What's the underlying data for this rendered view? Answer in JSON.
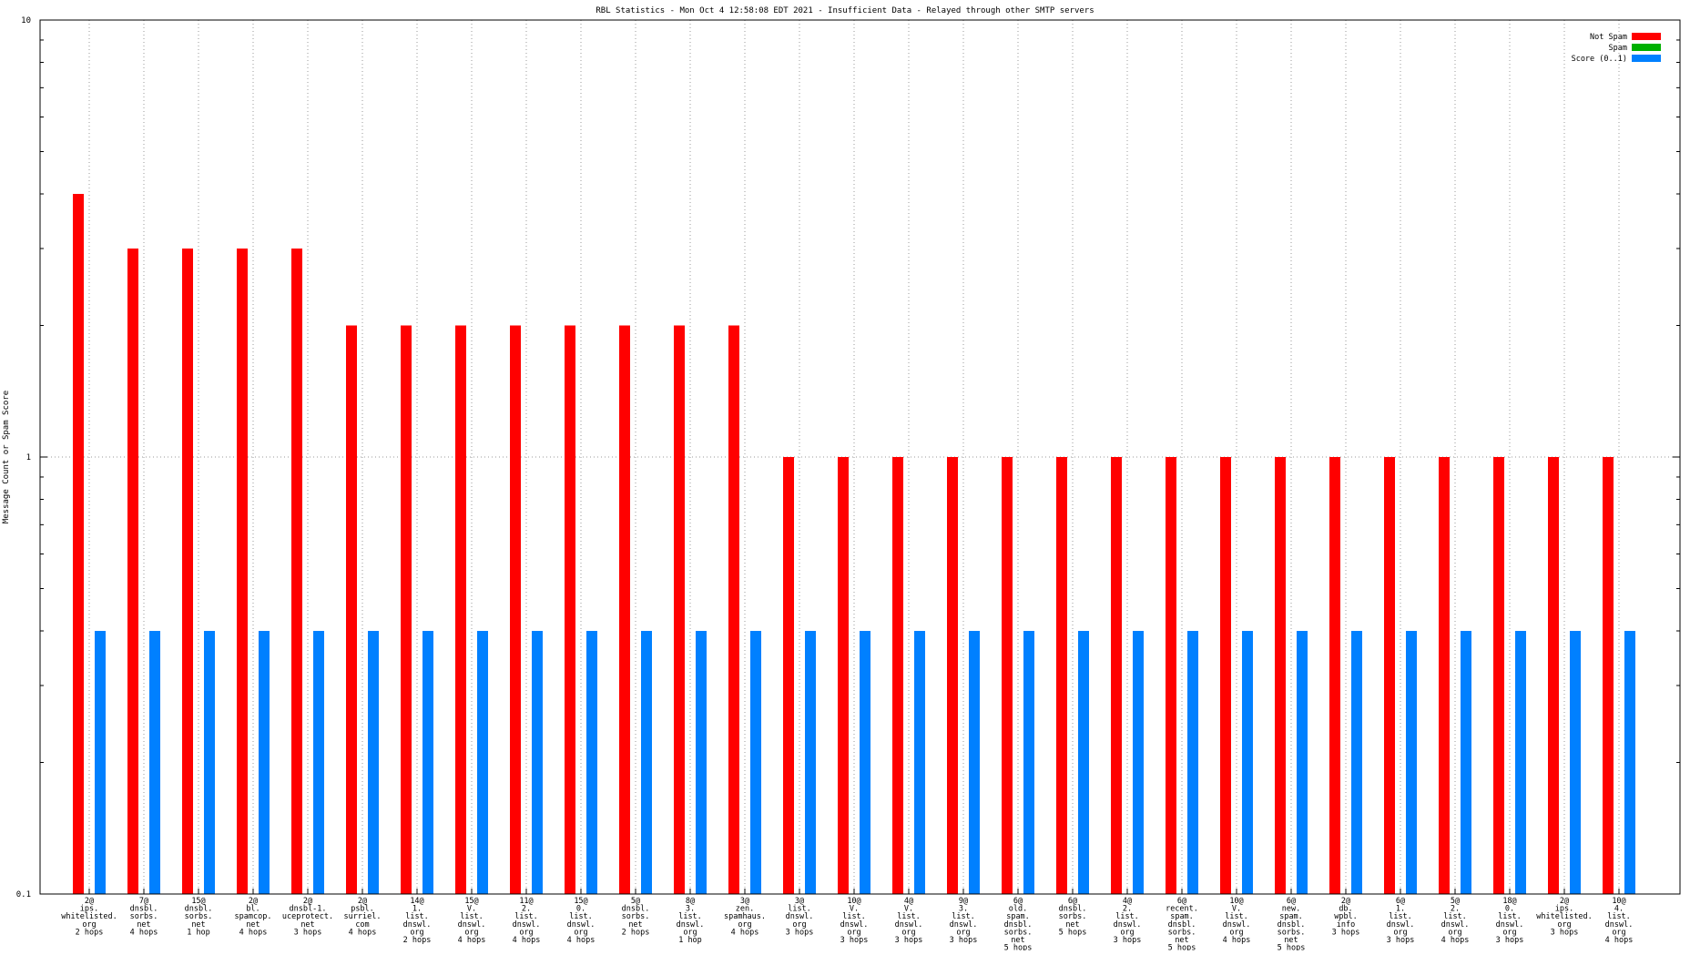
{
  "chart_data": {
    "type": "bar",
    "title": "RBL Statistics - Mon Oct  4 12:58:08 EDT 2021 - Insufficient Data - Relayed through other SMTP servers",
    "xlabel": "",
    "ylabel": "Message Count or Spam Score",
    "yscale": "log",
    "ylim": [
      0.1,
      10
    ],
    "yticks": [
      "0.1",
      "1",
      "10"
    ],
    "grid": true,
    "legend_position": "top-right",
    "categories": [
      [
        "2@",
        "ips.",
        "whitelisted.",
        "org",
        "2 hops"
      ],
      [
        "7@",
        "dnsbl.",
        "sorbs.",
        "net",
        "4 hops"
      ],
      [
        "15@",
        "dnsbl.",
        "sorbs.",
        "net",
        "1 hop"
      ],
      [
        "2@",
        "bl.",
        "spamcop.",
        "net",
        "4 hops"
      ],
      [
        "2@",
        "dnsbl-1.",
        "uceprotect.",
        "net",
        "3 hops"
      ],
      [
        "2@",
        "psbl.",
        "surriel.",
        "com",
        "4 hops"
      ],
      [
        "14@",
        "1.",
        "list.",
        "dnswl.",
        "org",
        "2 hops"
      ],
      [
        "15@",
        "V.",
        "list.",
        "dnswl.",
        "org",
        "4 hops"
      ],
      [
        "11@",
        "2.",
        "list.",
        "dnswl.",
        "org",
        "4 hops"
      ],
      [
        "15@",
        "0.",
        "list.",
        "dnswl.",
        "org",
        "4 hops"
      ],
      [
        "5@",
        "dnsbl.",
        "sorbs.",
        "net",
        "2 hops"
      ],
      [
        "8@",
        "3.",
        "list.",
        "dnswl.",
        "org",
        "1 hop"
      ],
      [
        "3@",
        "zen.",
        "spamhaus.",
        "org",
        "4 hops"
      ],
      [
        "3@",
        "list.",
        "dnswl.",
        "org",
        "3 hops"
      ],
      [
        "10@",
        "V.",
        "list.",
        "dnswl.",
        "org",
        "3 hops"
      ],
      [
        "4@",
        "V.",
        "list.",
        "dnswl.",
        "org",
        "3 hops"
      ],
      [
        "9@",
        "3.",
        "list.",
        "dnswl.",
        "org",
        "3 hops"
      ],
      [
        "6@",
        "old.",
        "spam.",
        "dnsbl.",
        "sorbs.",
        "net",
        "5 hops"
      ],
      [
        "6@",
        "dnsbl.",
        "sorbs.",
        "net",
        "5 hops"
      ],
      [
        "4@",
        "2.",
        "list.",
        "dnswl.",
        "org",
        "3 hops"
      ],
      [
        "6@",
        "recent.",
        "spam.",
        "dnsbl.",
        "sorbs.",
        "net",
        "5 hops"
      ],
      [
        "10@",
        "V.",
        "list.",
        "dnswl.",
        "org",
        "4 hops"
      ],
      [
        "6@",
        "new.",
        "spam.",
        "dnsbl.",
        "sorbs.",
        "net",
        "5 hops"
      ],
      [
        "2@",
        "db.",
        "wpbl.",
        "info",
        "3 hops"
      ],
      [
        "6@",
        "1.",
        "list.",
        "dnswl.",
        "org",
        "3 hops"
      ],
      [
        "5@",
        "2.",
        "list.",
        "dnswl.",
        "org",
        "4 hops"
      ],
      [
        "18@",
        "0.",
        "list.",
        "dnswl.",
        "org",
        "3 hops"
      ],
      [
        "2@",
        "ips.",
        "whitelisted.",
        "org",
        "3 hops"
      ],
      [
        "10@",
        "4.",
        "list.",
        "dnswl.",
        "org",
        "4 hops"
      ]
    ],
    "series": [
      {
        "name": "Not Spam",
        "color": "#ff0000",
        "values": [
          4,
          3,
          3,
          3,
          3,
          2,
          2,
          2,
          2,
          2,
          2,
          2,
          2,
          1,
          1,
          1,
          1,
          1,
          1,
          1,
          1,
          1,
          1,
          1,
          1,
          1,
          1,
          1,
          1
        ]
      },
      {
        "name": "Spam",
        "color": "#00b000",
        "values": [
          0,
          0,
          0,
          0,
          0,
          0,
          0,
          0,
          0,
          0,
          0,
          0,
          0,
          0,
          0,
          0,
          0,
          0,
          0,
          0,
          0,
          0,
          0,
          0,
          0,
          0,
          0,
          0,
          0
        ]
      },
      {
        "name": "Score (0..1)",
        "color": "#0080ff",
        "values": [
          0.4,
          0.4,
          0.4,
          0.4,
          0.4,
          0.4,
          0.4,
          0.4,
          0.4,
          0.4,
          0.4,
          0.4,
          0.4,
          0.4,
          0.4,
          0.4,
          0.4,
          0.4,
          0.4,
          0.4,
          0.4,
          0.4,
          0.4,
          0.4,
          0.4,
          0.4,
          0.4,
          0.4,
          0.4
        ]
      }
    ]
  }
}
